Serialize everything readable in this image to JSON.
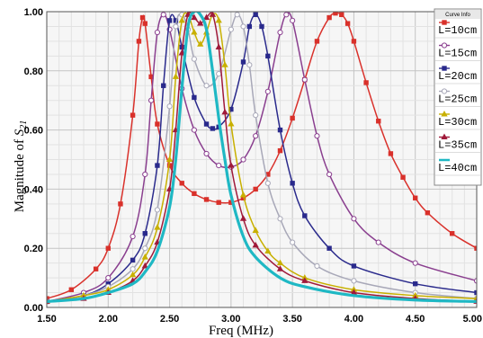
{
  "chart_data": {
    "type": "line",
    "xlabel": "Freq (MHz)",
    "ylabel_prefix": "Magnitude of ",
    "ylabel_symbol": "S",
    "ylabel_sub": "21",
    "xlim": [
      1.5,
      5.0
    ],
    "ylim": [
      0.0,
      1.0
    ],
    "x_ticks": [
      "1.50",
      "2.00",
      "2.50",
      "3.00",
      "3.50",
      "4.00",
      "4.50",
      "5.00"
    ],
    "y_ticks": [
      "0.00",
      "0.20",
      "0.40",
      "0.60",
      "0.80",
      "1.00"
    ],
    "grid": true,
    "legend_title": "Curve Info",
    "legend_position": "top-right",
    "series": [
      {
        "name": "L=10cm",
        "color": "#d9312b",
        "marker": "square",
        "x": [
          1.5,
          1.7,
          1.9,
          2.0,
          2.1,
          2.2,
          2.25,
          2.28,
          2.3,
          2.35,
          2.4,
          2.5,
          2.6,
          2.7,
          2.8,
          2.9,
          3.0,
          3.1,
          3.2,
          3.3,
          3.4,
          3.5,
          3.6,
          3.7,
          3.8,
          3.85,
          3.9,
          3.95,
          4.0,
          4.1,
          4.2,
          4.3,
          4.4,
          4.5,
          4.6,
          4.8,
          5.0
        ],
        "y": [
          0.03,
          0.06,
          0.13,
          0.2,
          0.35,
          0.65,
          0.9,
          0.98,
          0.96,
          0.78,
          0.62,
          0.48,
          0.42,
          0.385,
          0.365,
          0.355,
          0.355,
          0.37,
          0.4,
          0.45,
          0.53,
          0.64,
          0.77,
          0.9,
          0.98,
          0.995,
          0.99,
          0.96,
          0.9,
          0.76,
          0.63,
          0.52,
          0.44,
          0.37,
          0.32,
          0.25,
          0.2
        ]
      },
      {
        "name": "L=15cm",
        "color": "#8a3f8f",
        "marker": "circle",
        "x": [
          1.5,
          1.8,
          2.0,
          2.2,
          2.3,
          2.35,
          2.4,
          2.45,
          2.5,
          2.6,
          2.7,
          2.8,
          2.9,
          3.0,
          3.1,
          3.2,
          3.3,
          3.4,
          3.45,
          3.5,
          3.6,
          3.7,
          3.8,
          4.0,
          4.2,
          4.5,
          5.0
        ],
        "y": [
          0.02,
          0.05,
          0.1,
          0.24,
          0.45,
          0.7,
          0.93,
          0.99,
          0.94,
          0.74,
          0.6,
          0.52,
          0.48,
          0.475,
          0.5,
          0.58,
          0.73,
          0.93,
          0.99,
          0.97,
          0.77,
          0.58,
          0.45,
          0.3,
          0.22,
          0.15,
          0.09
        ]
      },
      {
        "name": "L=20cm",
        "color": "#2a2a8c",
        "marker": "square",
        "x": [
          1.5,
          1.8,
          2.0,
          2.2,
          2.3,
          2.4,
          2.45,
          2.5,
          2.55,
          2.6,
          2.7,
          2.8,
          2.85,
          2.9,
          3.0,
          3.1,
          3.15,
          3.2,
          3.25,
          3.3,
          3.4,
          3.5,
          3.6,
          3.8,
          4.0,
          4.5,
          5.0
        ],
        "y": [
          0.02,
          0.04,
          0.08,
          0.16,
          0.25,
          0.48,
          0.75,
          0.97,
          0.97,
          0.88,
          0.71,
          0.62,
          0.605,
          0.61,
          0.67,
          0.83,
          0.95,
          0.99,
          0.95,
          0.85,
          0.6,
          0.42,
          0.31,
          0.2,
          0.14,
          0.08,
          0.05
        ]
      },
      {
        "name": "L=25cm",
        "color": "#a8a8b8",
        "marker": "circle",
        "x": [
          1.5,
          1.8,
          2.0,
          2.2,
          2.3,
          2.4,
          2.5,
          2.55,
          2.6,
          2.65,
          2.7,
          2.8,
          2.9,
          3.0,
          3.05,
          3.1,
          3.15,
          3.2,
          3.3,
          3.4,
          3.5,
          3.7,
          4.0,
          4.5,
          5.0
        ],
        "y": [
          0.02,
          0.04,
          0.07,
          0.13,
          0.2,
          0.33,
          0.68,
          0.95,
          0.99,
          0.94,
          0.84,
          0.75,
          0.79,
          0.94,
          0.99,
          0.95,
          0.82,
          0.65,
          0.42,
          0.3,
          0.22,
          0.14,
          0.09,
          0.05,
          0.03
        ]
      },
      {
        "name": "L=30cm",
        "color": "#c8b000",
        "marker": "triangle",
        "x": [
          1.5,
          1.8,
          2.0,
          2.2,
          2.3,
          2.4,
          2.5,
          2.55,
          2.6,
          2.65,
          2.7,
          2.75,
          2.8,
          2.85,
          2.9,
          2.95,
          3.0,
          3.1,
          3.2,
          3.3,
          3.4,
          3.6,
          4.0,
          4.5,
          5.0
        ],
        "y": [
          0.02,
          0.04,
          0.06,
          0.11,
          0.17,
          0.27,
          0.5,
          0.78,
          0.97,
          0.99,
          0.93,
          0.89,
          0.93,
          0.99,
          0.97,
          0.82,
          0.62,
          0.38,
          0.26,
          0.19,
          0.15,
          0.1,
          0.06,
          0.04,
          0.03
        ]
      },
      {
        "name": "L=35cm",
        "color": "#a01a3a",
        "marker": "triangle",
        "x": [
          1.5,
          1.8,
          2.0,
          2.2,
          2.3,
          2.4,
          2.5,
          2.55,
          2.6,
          2.65,
          2.7,
          2.75,
          2.8,
          2.85,
          2.9,
          2.95,
          3.0,
          3.1,
          3.2,
          3.4,
          3.6,
          4.0,
          4.5,
          5.0
        ],
        "y": [
          0.02,
          0.03,
          0.05,
          0.09,
          0.14,
          0.22,
          0.4,
          0.6,
          0.86,
          0.99,
          0.98,
          0.96,
          0.98,
          0.99,
          0.88,
          0.66,
          0.48,
          0.3,
          0.21,
          0.13,
          0.09,
          0.05,
          0.03,
          0.02
        ]
      },
      {
        "name": "L=40cm",
        "color": "#1fb8c4",
        "marker": "none",
        "x": [
          1.5,
          1.8,
          2.0,
          2.2,
          2.3,
          2.4,
          2.5,
          2.55,
          2.6,
          2.65,
          2.7,
          2.75,
          2.8,
          2.85,
          2.9,
          2.95,
          3.0,
          3.1,
          3.2,
          3.4,
          3.6,
          4.0,
          4.5,
          5.0
        ],
        "y": [
          0.02,
          0.03,
          0.05,
          0.08,
          0.12,
          0.19,
          0.34,
          0.5,
          0.74,
          0.95,
          1.0,
          0.99,
          0.94,
          0.8,
          0.64,
          0.5,
          0.38,
          0.24,
          0.17,
          0.1,
          0.07,
          0.04,
          0.025,
          0.02
        ]
      }
    ]
  }
}
